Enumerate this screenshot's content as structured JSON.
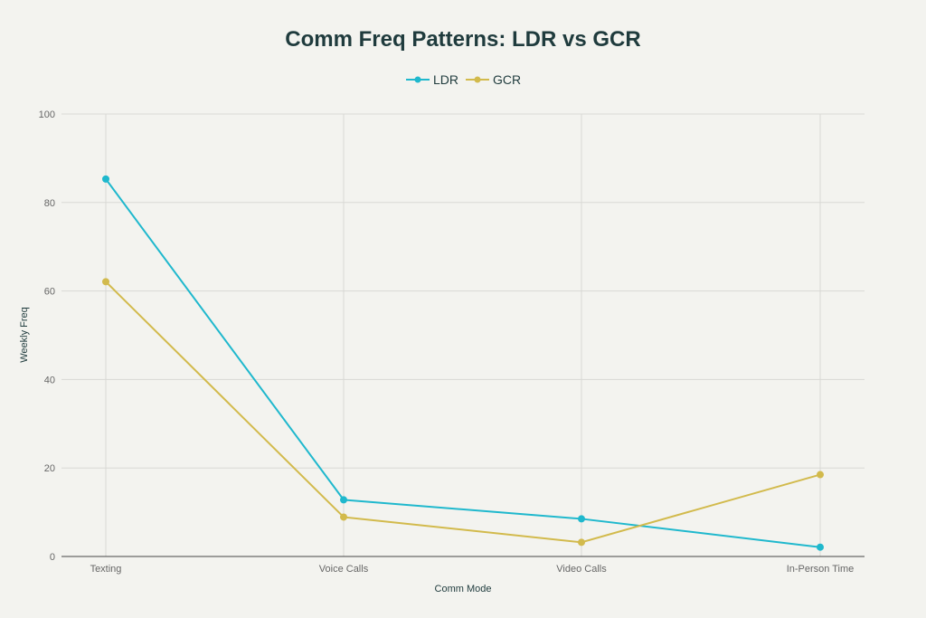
{
  "chart_data": {
    "type": "line",
    "title": "Comm Freq Patterns: LDR vs GCR",
    "xlabel": "Comm Mode",
    "ylabel": "Weekly Freq",
    "categories": [
      "Texting",
      "Voice Calls",
      "Video Calls",
      "In-Person Time"
    ],
    "ylim": [
      0,
      100
    ],
    "yticks": [
      0,
      20,
      40,
      60,
      80,
      100
    ],
    "grid": true,
    "legend_position": "top-center",
    "series": [
      {
        "name": "LDR",
        "color": "#1fb8cd",
        "values": [
          85.3,
          12.8,
          8.5,
          2.1
        ]
      },
      {
        "name": "GCR",
        "color": "#d2ba4c",
        "values": [
          62.1,
          8.9,
          3.2,
          18.5
        ]
      }
    ]
  }
}
